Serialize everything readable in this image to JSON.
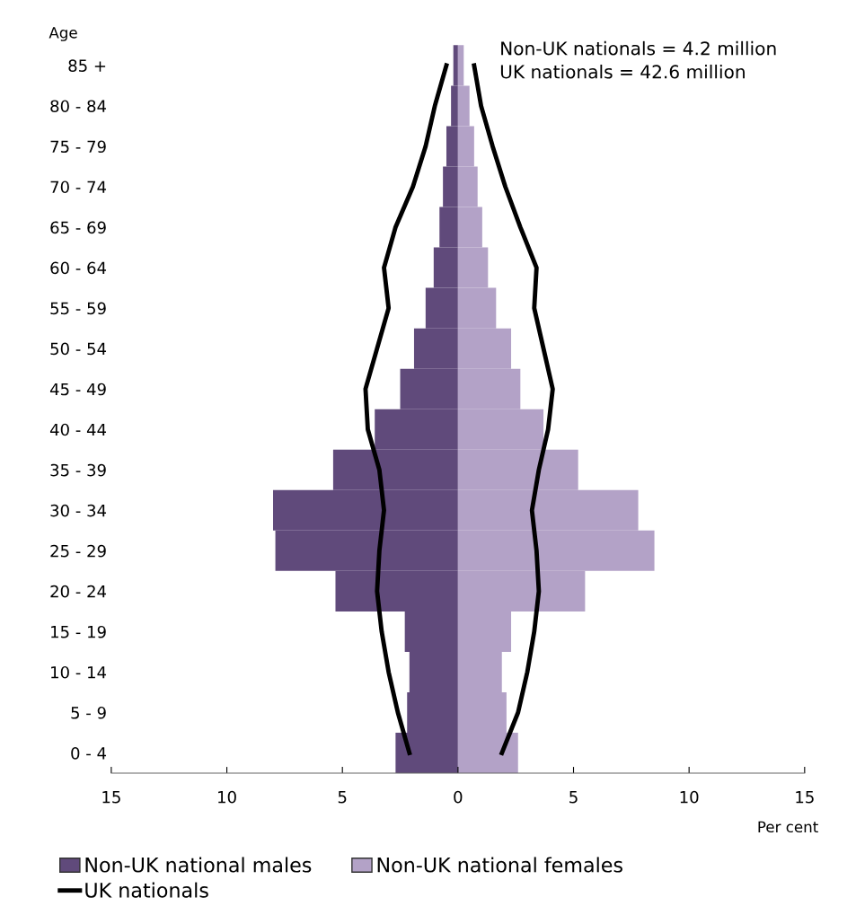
{
  "chart_data": {
    "type": "bar",
    "orientation": "horizontal",
    "ylabel": "Age",
    "xlabel": "Per cent",
    "annotations": [
      "Non-UK nationals = 4.2 million",
      "UK nationals = 42.6 million"
    ],
    "categories": [
      "85 +",
      "80 - 84",
      "75 - 79",
      "70 - 74",
      "65 - 69",
      "60 - 64",
      "55 - 59",
      "50 - 54",
      "45 - 49",
      "40 - 44",
      "35 - 39",
      "30 - 34",
      "25 - 29",
      "20 - 24",
      "15 - 19",
      "10 - 14",
      "5 - 9",
      "0 - 4"
    ],
    "series": [
      {
        "name": "Non-UK national males",
        "color": "#604a7b",
        "values": [
          -0.2,
          -0.3,
          -0.5,
          -0.65,
          -0.8,
          -1.05,
          -1.4,
          -1.9,
          -2.5,
          -3.6,
          -5.4,
          -8.0,
          -7.9,
          -5.3,
          -2.3,
          -2.1,
          -2.2,
          -2.7
        ]
      },
      {
        "name": "Non-UK national females",
        "color": "#b3a2c7",
        "values": [
          0.25,
          0.5,
          0.7,
          0.85,
          1.05,
          1.3,
          1.65,
          2.3,
          2.7,
          3.7,
          5.2,
          7.8,
          8.5,
          5.5,
          2.3,
          1.9,
          2.1,
          2.6
        ]
      },
      {
        "name": "UK nationals",
        "type": "line",
        "color": "#000000",
        "values": [
          -0.5,
          -1.0,
          -1.4,
          -1.95,
          -2.7,
          -3.2,
          -3.0,
          -3.5,
          -4.0,
          -3.9,
          -3.4,
          -3.2,
          -3.4,
          -3.5,
          -3.3,
          -3.0,
          -2.6,
          -2.1
        ]
      },
      {
        "type": "line",
        "color": "#000000",
        "values": [
          0.7,
          1.0,
          1.5,
          2.05,
          2.7,
          3.4,
          3.3,
          3.7,
          4.1,
          3.9,
          3.5,
          3.2,
          3.4,
          3.5,
          3.3,
          3.0,
          2.6,
          1.9
        ]
      }
    ],
    "xlim": [
      -15,
      15
    ],
    "xticks": [
      {
        "value": -15,
        "label": "15"
      },
      {
        "value": -10,
        "label": "10"
      },
      {
        "value": -5,
        "label": "5"
      },
      0,
      5,
      10,
      15
    ],
    "stacked": true,
    "grid": false,
    "legend": "bottom"
  }
}
